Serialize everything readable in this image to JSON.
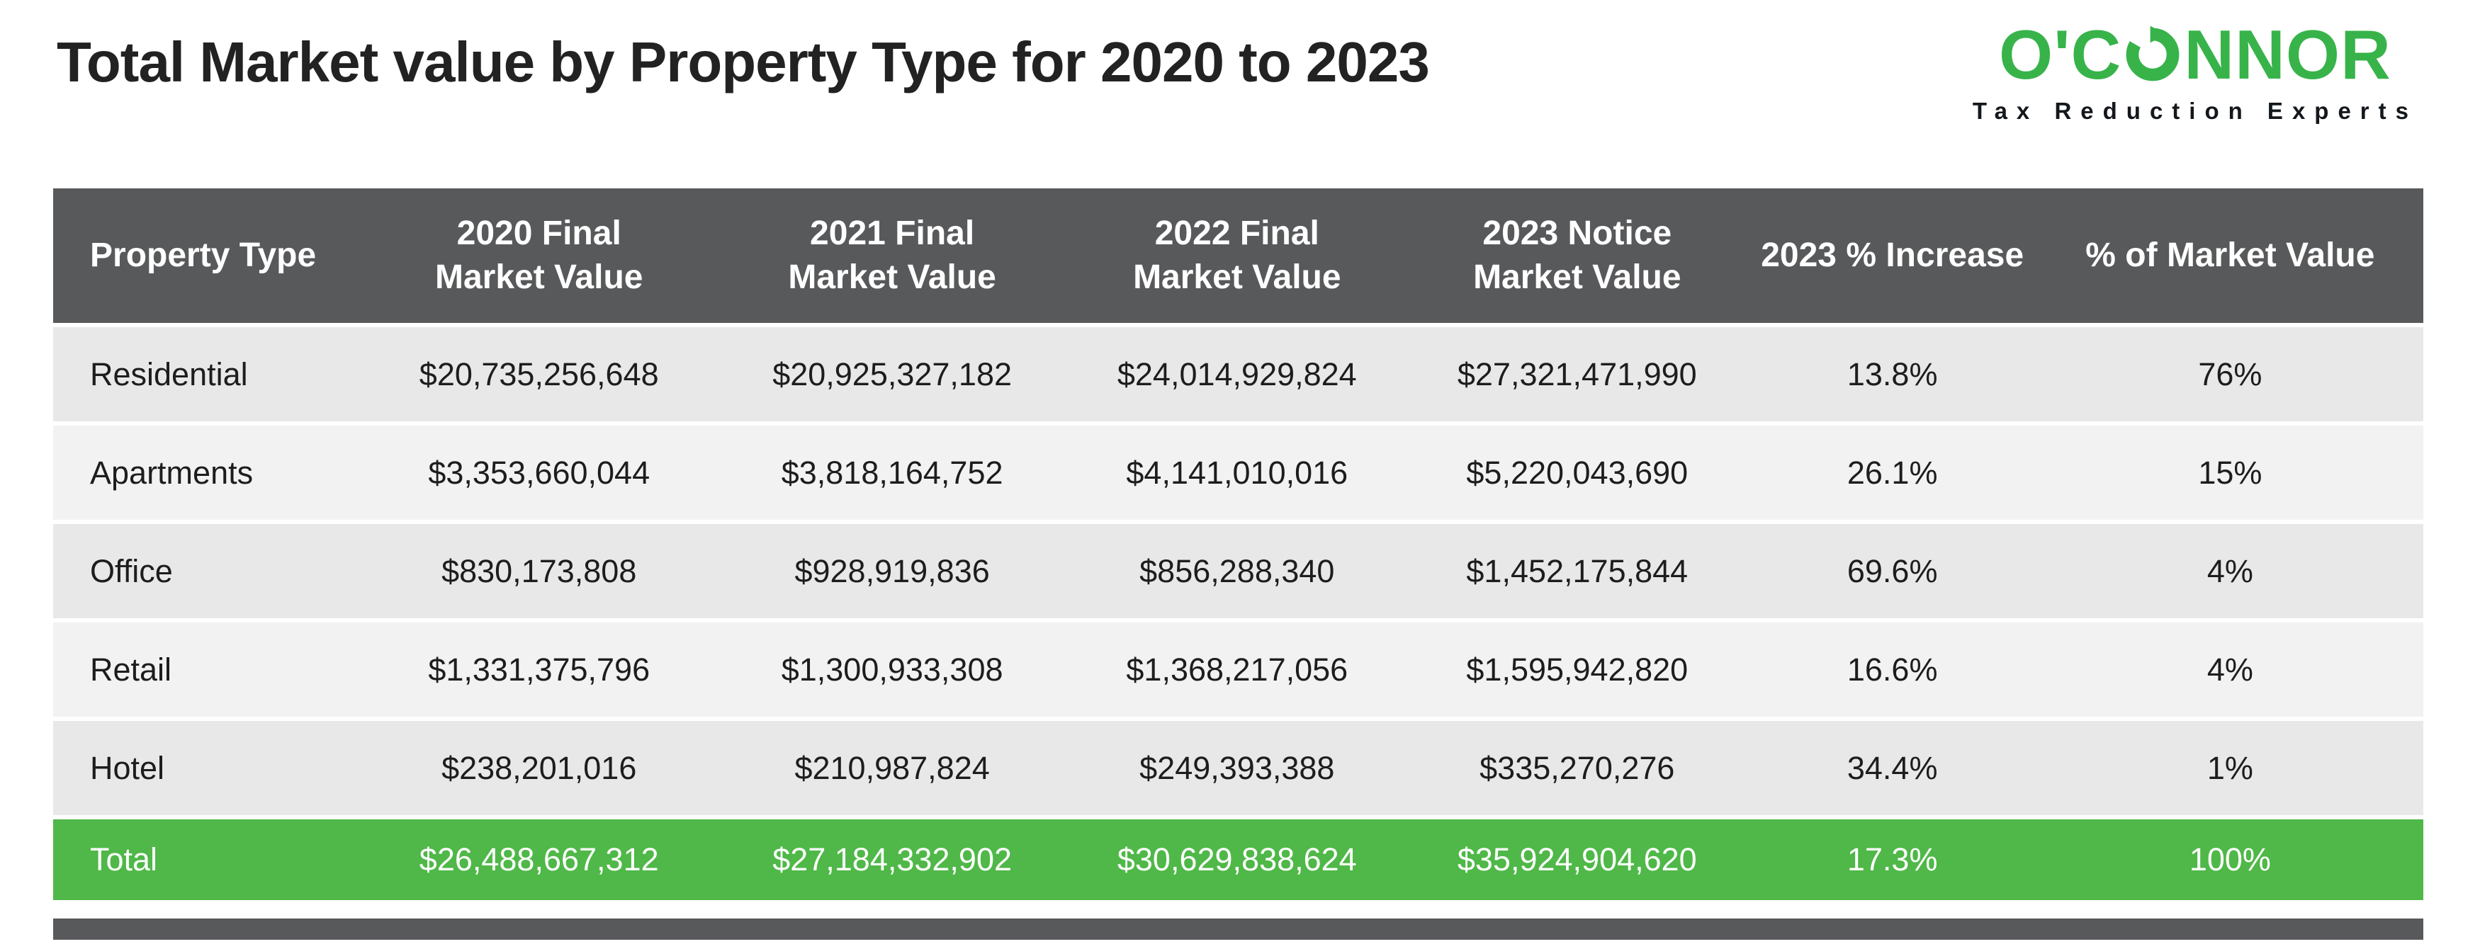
{
  "header": {
    "title": "Total Market value by Property Type for 2020 to 2023",
    "logo": {
      "prefix": "O'C",
      "suffix": "NNOR",
      "tagline": "Tax Reduction Experts"
    }
  },
  "colors": {
    "brand_green": "#37b34a",
    "total_row_green": "#4fb848",
    "header_bg": "#58595b",
    "row_alt_dark": "#e8e8e8",
    "row_alt_light": "#f2f2f2",
    "footer_bar": "#58595b",
    "title_text": "#222222"
  },
  "chart_data": {
    "type": "table",
    "title": "Total Market value by Property Type for 2020 to 2023",
    "columns": [
      "Property Type",
      "2020 Final\nMarket Value",
      "2021 Final\nMarket Value",
      "2022 Final\nMarket Value",
      "2023 Notice\nMarket Value",
      "2023 % Increase",
      "% of Market Value"
    ],
    "rows": [
      [
        "Residential",
        "$20,735,256,648",
        "$20,925,327,182",
        "$24,014,929,824",
        "$27,321,471,990",
        "13.8%",
        "76%"
      ],
      [
        "Apartments",
        "$3,353,660,044",
        "$3,818,164,752",
        "$4,141,010,016",
        "$5,220,043,690",
        "26.1%",
        "15%"
      ],
      [
        "Office",
        "$830,173,808",
        "$928,919,836",
        "$856,288,340",
        "$1,452,175,844",
        "69.6%",
        "4%"
      ],
      [
        "Retail",
        "$1,331,375,796",
        "$1,300,933,308",
        "$1,368,217,056",
        "$1,595,942,820",
        "16.6%",
        "4%"
      ],
      [
        "Hotel",
        "$238,201,016",
        "$210,987,824",
        "$249,393,388",
        "$335,270,276",
        "34.4%",
        "1%"
      ]
    ],
    "total_row": [
      "Total",
      "$26,488,667,312",
      "$27,184,332,902",
      "$30,629,838,624",
      "$35,924,904,620",
      "17.3%",
      "100%"
    ]
  }
}
